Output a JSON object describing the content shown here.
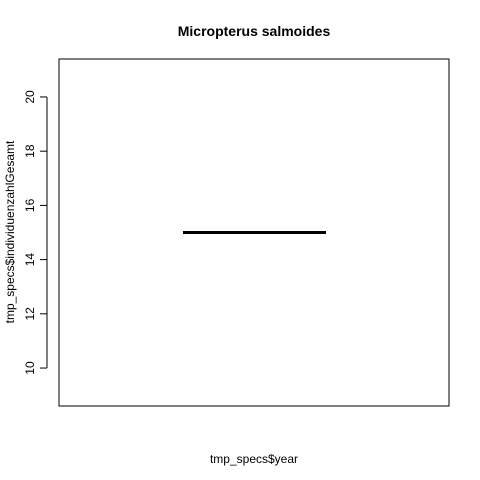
{
  "chart_data": {
    "type": "line",
    "title": "Micropterus salmoides",
    "xlabel": "tmp_specs$year",
    "ylabel": "tmp_specs$individuenzahlGesamt",
    "ylim": [
      8.6,
      21.4
    ],
    "y_ticks": [
      "10",
      "12",
      "14",
      "16",
      "18",
      "20"
    ],
    "x_ticks_visible": false,
    "series": [
      {
        "x": [
          0,
          1
        ],
        "y": [
          15,
          15
        ],
        "color": "#000000"
      }
    ]
  }
}
